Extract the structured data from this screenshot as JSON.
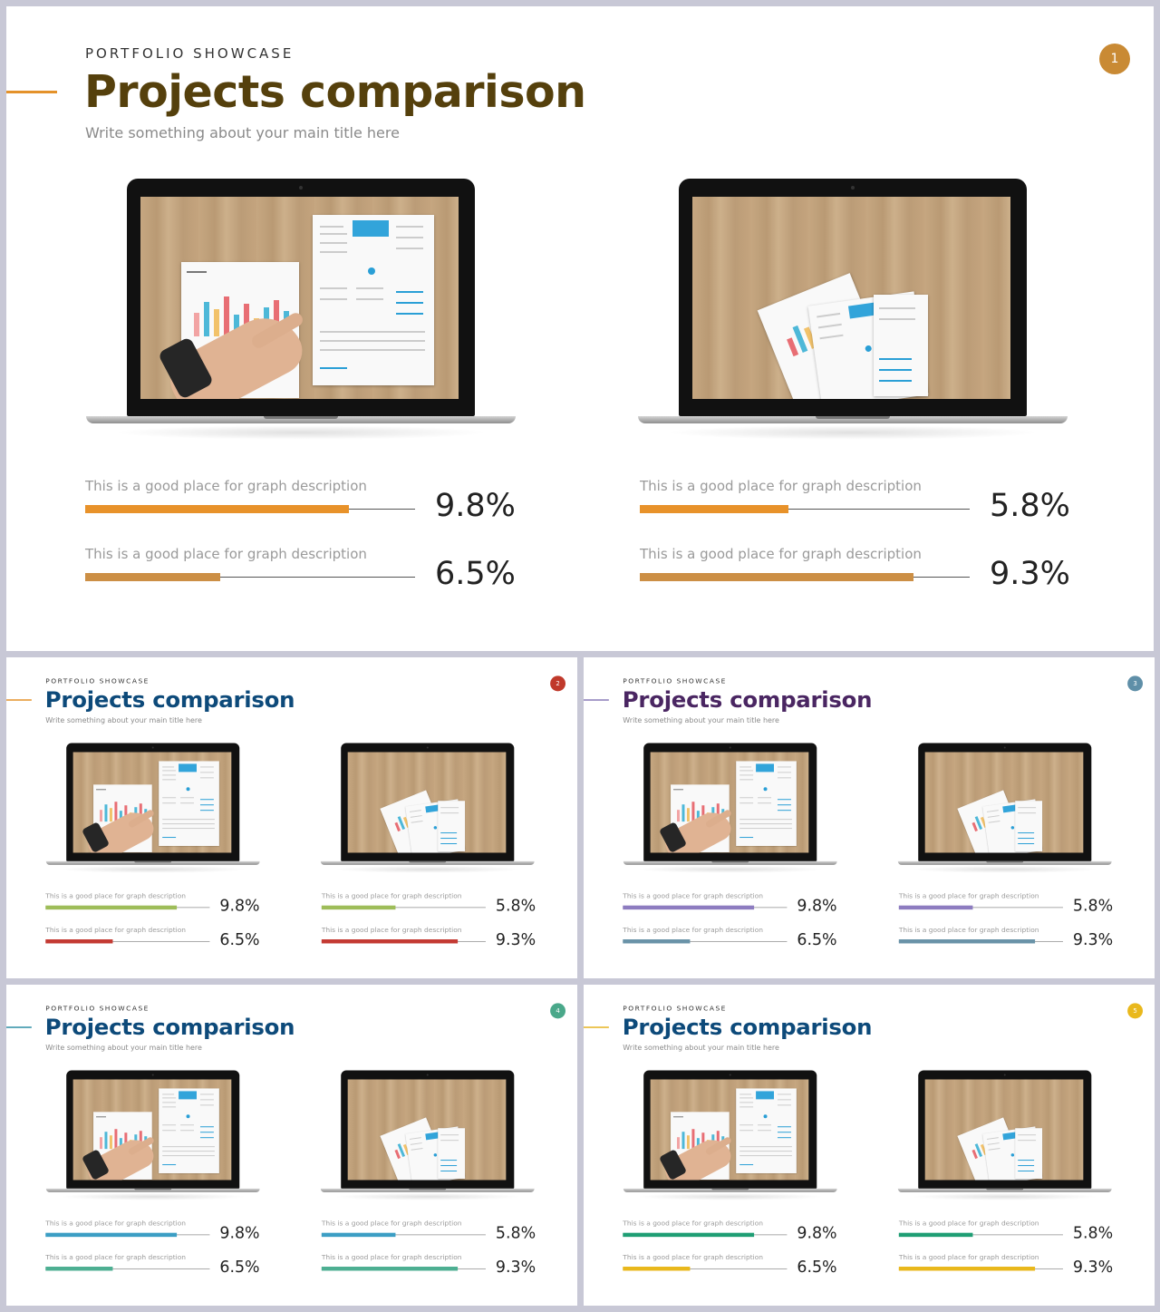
{
  "slides": [
    {
      "eyebrow": "PORTFOLIO SHOWCASE",
      "title": "Projects comparison",
      "subtitle": "Write something about your main title here",
      "badge": "1",
      "colors": {
        "title": "#55400c",
        "accent": "#e4922a",
        "badge": "#c98a34",
        "bar1": "#e8922a",
        "bar2": "#cc8f45"
      },
      "stats": {
        "left": [
          {
            "label": "This is a good place for graph description",
            "value": "9.8%",
            "fill": 0.8
          },
          {
            "label": "This is a good place for graph description",
            "value": "6.5%",
            "fill": 0.41
          }
        ],
        "right": [
          {
            "label": "This is a good place for graph description",
            "value": "5.8%",
            "fill": 0.45
          },
          {
            "label": "This is a good place for graph description",
            "value": "9.3%",
            "fill": 0.83
          }
        ]
      }
    },
    {
      "eyebrow": "PORTFOLIO SHOWCASE",
      "title": "Projects comparison",
      "subtitle": "Write something about your main title here",
      "badge": "2",
      "colors": {
        "title": "#0d4a7a",
        "accent": "#e4922a",
        "badge": "#c0392b",
        "bar1": "#9ebd59",
        "bar2": "#c43a33"
      },
      "stats": {
        "left": [
          {
            "label": "This is a good place for graph description",
            "value": "9.8%",
            "fill": 0.8
          },
          {
            "label": "This is a good place for graph description",
            "value": "6.5%",
            "fill": 0.41
          }
        ],
        "right": [
          {
            "label": "This is a good place for graph description",
            "value": "5.8%",
            "fill": 0.45
          },
          {
            "label": "This is a good place for graph description",
            "value": "9.3%",
            "fill": 0.83
          }
        ]
      }
    },
    {
      "eyebrow": "PORTFOLIO SHOWCASE",
      "title": "Projects comparison",
      "subtitle": "Write something about your main title here",
      "badge": "3",
      "colors": {
        "title": "#4a2662",
        "accent": "#8a7bb8",
        "badge": "#5f8fa8",
        "bar1": "#8d7cc0",
        "bar2": "#6a93a8"
      },
      "stats": {
        "left": [
          {
            "label": "This is a good place for graph description",
            "value": "9.8%",
            "fill": 0.8
          },
          {
            "label": "This is a good place for graph description",
            "value": "6.5%",
            "fill": 0.41
          }
        ],
        "right": [
          {
            "label": "This is a good place for graph description",
            "value": "5.8%",
            "fill": 0.45
          },
          {
            "label": "This is a good place for graph description",
            "value": "9.3%",
            "fill": 0.83
          }
        ]
      }
    },
    {
      "eyebrow": "PORTFOLIO SHOWCASE",
      "title": "Projects comparison",
      "subtitle": "Write something about your main title here",
      "badge": "4",
      "colors": {
        "title": "#0d4a7a",
        "accent": "#2f8fa6",
        "badge": "#4aa88a",
        "bar1": "#3c9ec4",
        "bar2": "#4daf92"
      },
      "stats": {
        "left": [
          {
            "label": "This is a good place for graph description",
            "value": "9.8%",
            "fill": 0.8
          },
          {
            "label": "This is a good place for graph description",
            "value": "6.5%",
            "fill": 0.41
          }
        ],
        "right": [
          {
            "label": "This is a good place for graph description",
            "value": "5.8%",
            "fill": 0.45
          },
          {
            "label": "This is a good place for graph description",
            "value": "9.3%",
            "fill": 0.83
          }
        ]
      }
    },
    {
      "eyebrow": "PORTFOLIO SHOWCASE",
      "title": "Projects comparison",
      "subtitle": "Write something about your main title here",
      "badge": "5",
      "colors": {
        "title": "#0d4a7a",
        "accent": "#e6b422",
        "badge": "#e9b81c",
        "bar1": "#1f9e74",
        "bar2": "#e9b81c"
      },
      "stats": {
        "left": [
          {
            "label": "This is a good place for graph description",
            "value": "9.8%",
            "fill": 0.8
          },
          {
            "label": "This is a good place for graph description",
            "value": "6.5%",
            "fill": 0.41
          }
        ],
        "right": [
          {
            "label": "This is a good place for graph description",
            "value": "5.8%",
            "fill": 0.45
          },
          {
            "label": "This is a good place for graph description",
            "value": "9.3%",
            "fill": 0.83
          }
        ]
      }
    }
  ],
  "images": {
    "laptop_left": "laptop-photo-hand-pointing-chart",
    "laptop_right": "laptop-photo-documents-on-wood"
  }
}
